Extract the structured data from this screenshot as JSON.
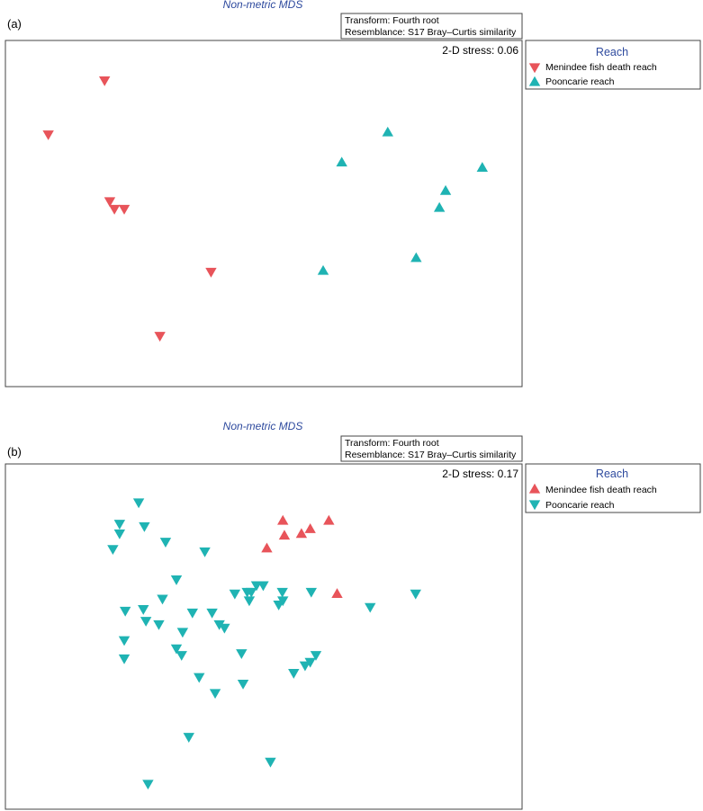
{
  "colors": {
    "menindee": "#e8545a",
    "pooncarie": "#1fb3b3",
    "title": "#2e4a9e"
  },
  "chart_data": [
    {
      "type": "scatter",
      "panel_label": "(a)",
      "title": "Non-metric MDS",
      "transform": "Transform: Fourth root",
      "resemblance": "Resemblance: S17 Bray–Curtis similarity",
      "stress": "2-D stress: 0.06",
      "xlim": [
        0,
        100
      ],
      "ylim": [
        0,
        100
      ],
      "legend": {
        "title": "Reach",
        "placement": "outside-right-top"
      },
      "series": [
        {
          "name": "Menindee fish death reach",
          "marker": "triangle-down",
          "color": "#e8545a",
          "points": [
            [
              19.2,
              88.4
            ],
            [
              8.3,
              72.8
            ],
            [
              20.2,
              53.5
            ],
            [
              21.1,
              51.3
            ],
            [
              23.0,
              51.3
            ],
            [
              39.8,
              33.1
            ],
            [
              29.9,
              14.6
            ]
          ]
        },
        {
          "name": "Pooncarie reach",
          "marker": "triangle-up",
          "color": "#1fb3b3",
          "points": [
            [
              74.0,
              73.5
            ],
            [
              65.1,
              64.8
            ],
            [
              92.3,
              63.3
            ],
            [
              85.2,
              56.6
            ],
            [
              84.0,
              51.7
            ],
            [
              79.5,
              37.2
            ],
            [
              61.5,
              33.5
            ]
          ]
        }
      ]
    },
    {
      "type": "scatter",
      "panel_label": "(b)",
      "title": "Non-metric MDS",
      "transform": "Transform: Fourth root",
      "resemblance": "Resemblance: S17 Bray–Curtis similarity",
      "stress": "2-D stress: 0.17",
      "xlim": [
        0,
        100
      ],
      "ylim": [
        0,
        100
      ],
      "legend": {
        "title": "Reach",
        "placement": "outside-right-top"
      },
      "series": [
        {
          "name": "Menindee fish death reach",
          "marker": "triangle-up",
          "color": "#e8545a",
          "points": [
            [
              53.7,
              83.6
            ],
            [
              62.6,
              83.6
            ],
            [
              59.0,
              81.2
            ],
            [
              57.3,
              79.8
            ],
            [
              54.0,
              79.3
            ],
            [
              50.6,
              75.6
            ],
            [
              64.2,
              62.4
            ]
          ]
        },
        {
          "name": "Pooncarie reach",
          "marker": "triangle-down",
          "color": "#1fb3b3",
          "points": [
            [
              25.8,
              88.8
            ],
            [
              22.1,
              82.6
            ],
            [
              26.9,
              81.9
            ],
            [
              22.1,
              79.8
            ],
            [
              31.0,
              77.4
            ],
            [
              20.8,
              75.3
            ],
            [
              38.6,
              74.6
            ],
            [
              33.1,
              66.5
            ],
            [
              48.6,
              64.8
            ],
            [
              49.9,
              64.8
            ],
            [
              46.8,
              62.9
            ],
            [
              47.6,
              62.9
            ],
            [
              44.4,
              62.4
            ],
            [
              53.6,
              62.9
            ],
            [
              59.2,
              62.9
            ],
            [
              30.4,
              60.9
            ],
            [
              47.2,
              60.4
            ],
            [
              53.7,
              60.4
            ],
            [
              52.9,
              59.2
            ],
            [
              70.6,
              58.5
            ],
            [
              79.4,
              62.4
            ],
            [
              23.2,
              57.4
            ],
            [
              26.7,
              57.9
            ],
            [
              36.2,
              56.9
            ],
            [
              40.0,
              56.9
            ],
            [
              27.2,
              54.5
            ],
            [
              29.7,
              53.5
            ],
            [
              41.4,
              53.5
            ],
            [
              42.4,
              52.5
            ],
            [
              34.3,
              51.3
            ],
            [
              23.0,
              48.9
            ],
            [
              33.1,
              46.5
            ],
            [
              34.1,
              44.6
            ],
            [
              45.7,
              45.1
            ],
            [
              23.0,
              43.6
            ],
            [
              60.1,
              44.6
            ],
            [
              59.0,
              42.6
            ],
            [
              58.0,
              41.6
            ],
            [
              55.8,
              39.4
            ],
            [
              37.5,
              38.2
            ],
            [
              46.0,
              36.3
            ],
            [
              40.6,
              33.6
            ],
            [
              35.5,
              20.9
            ],
            [
              51.3,
              13.7
            ],
            [
              27.6,
              7.3
            ]
          ]
        }
      ]
    }
  ]
}
